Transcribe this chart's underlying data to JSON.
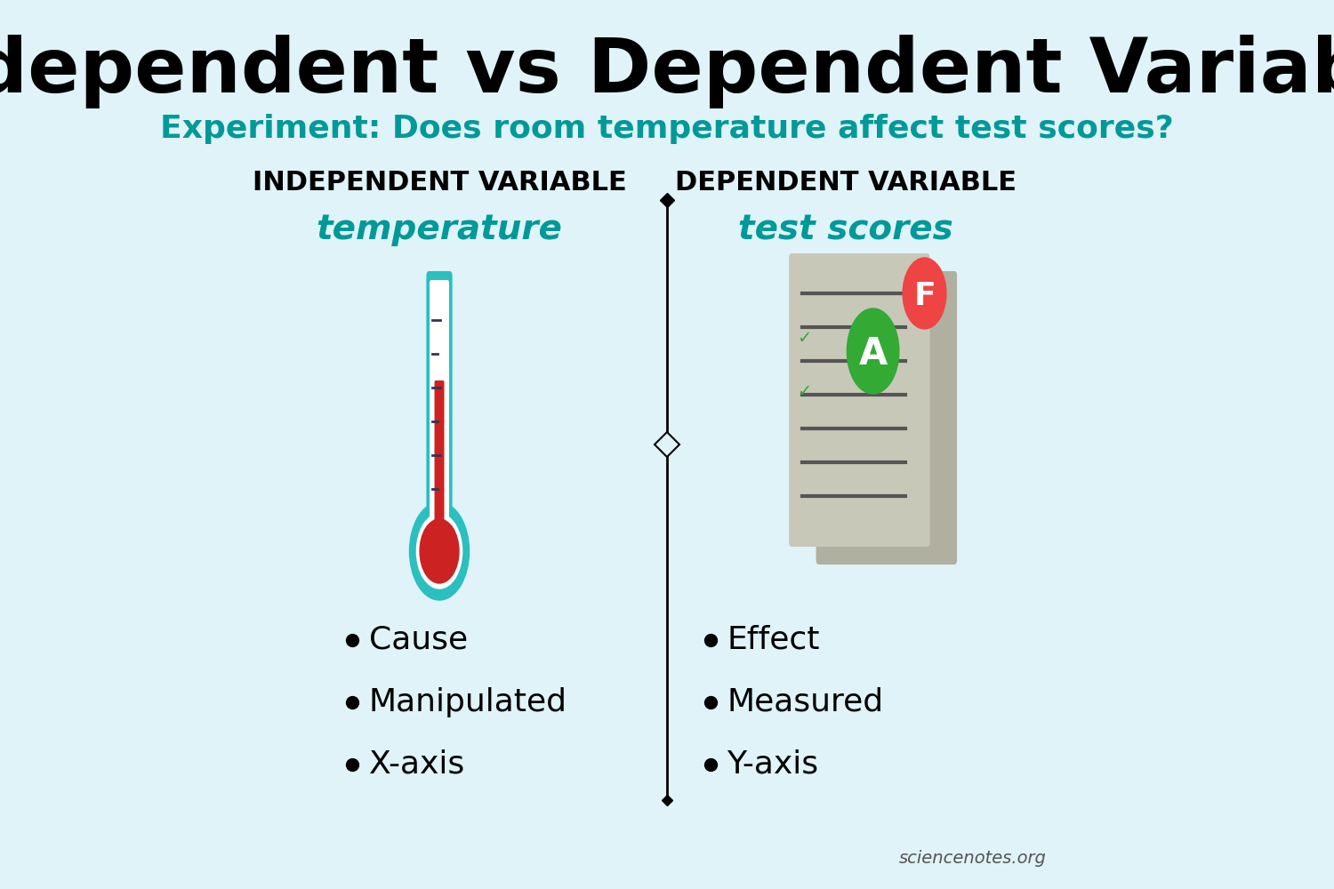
{
  "title": "Independent vs Dependent Variable",
  "subtitle": "Experiment: Does room temperature affect test scores?",
  "background_color": "#dff3f8",
  "title_color": "#000000",
  "subtitle_color": "#009999",
  "left_header": "INDEPENDENT VARIABLE",
  "right_header": "DEPENDENT VARIABLE",
  "left_subheader": "temperature",
  "right_subheader": "test scores",
  "left_bullets": [
    "Cause",
    "Manipulated",
    "X-axis"
  ],
  "right_bullets": [
    "Effect",
    "Measured",
    "Y-axis"
  ],
  "header_color": "#000000",
  "subheader_color": "#009999",
  "bullet_color": "#000000",
  "divider_color": "#000000",
  "watermark": "sciencenotes.org",
  "thermometer_body_color": "#2bbfbf",
  "thermometer_fill_color": "#cc2222",
  "thermometer_bulb_color": "#cc2222"
}
